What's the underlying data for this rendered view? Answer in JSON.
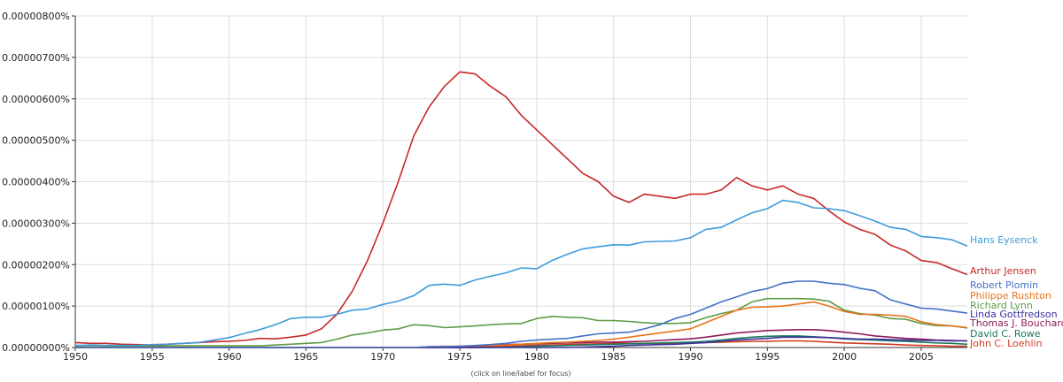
{
  "chart_data": {
    "type": "line",
    "title": "",
    "xlabel": "",
    "ylabel": "",
    "hint": "(click on line/label for focus)",
    "xlim": [
      1950,
      2008
    ],
    "ylim": [
      0,
      8e-06
    ],
    "x_ticks": [
      1950,
      1955,
      1960,
      1965,
      1970,
      1975,
      1980,
      1985,
      1990,
      1995,
      2000,
      2005
    ],
    "y_ticks": [
      {
        "value": 0,
        "label": "0.00000000%"
      },
      {
        "value": 1e-06,
        "label": "0.00000100%"
      },
      {
        "value": 2e-06,
        "label": "0.00000200%"
      },
      {
        "value": 3e-06,
        "label": "0.00000300%"
      },
      {
        "value": 4e-06,
        "label": "0.00000400%"
      },
      {
        "value": 5e-06,
        "label": "0.00000500%"
      },
      {
        "value": 6e-06,
        "label": "0.00000600%"
      },
      {
        "value": 7e-06,
        "label": "0.00000700%"
      },
      {
        "value": 8e-06,
        "label": "0.00000800%"
      }
    ],
    "grid": true,
    "legend": "right, at line ends",
    "x": [
      1950,
      1951,
      1952,
      1953,
      1954,
      1955,
      1956,
      1957,
      1958,
      1959,
      1960,
      1961,
      1962,
      1963,
      1964,
      1965,
      1966,
      1967,
      1968,
      1969,
      1970,
      1971,
      1972,
      1973,
      1974,
      1975,
      1976,
      1977,
      1978,
      1979,
      1980,
      1981,
      1982,
      1983,
      1984,
      1985,
      1986,
      1987,
      1988,
      1989,
      1990,
      1991,
      1992,
      1993,
      1994,
      1995,
      1996,
      1997,
      1998,
      1999,
      2000,
      2001,
      2002,
      2003,
      2004,
      2005,
      2006,
      2007,
      2008
    ],
    "series": [
      {
        "name": "Hans Eysenck",
        "color": "#3d9bdb",
        "values": [
          5e-08,
          6e-08,
          5e-08,
          5e-08,
          5e-08,
          7e-08,
          8e-08,
          1e-07,
          1.2e-07,
          1.8e-07,
          2.4e-07,
          3.4e-07,
          4.3e-07,
          5.5e-07,
          7e-07,
          7.3e-07,
          7.3e-07,
          8e-07,
          9e-07,
          9.3e-07,
          1.04e-06,
          1.12e-06,
          1.25e-06,
          1.5e-06,
          1.53e-06,
          1.5e-06,
          1.63e-06,
          1.72e-06,
          1.8e-06,
          1.92e-06,
          1.9e-06,
          2.1e-06,
          2.25e-06,
          2.38e-06,
          2.43e-06,
          2.48e-06,
          2.47e-06,
          2.55e-06,
          2.56e-06,
          2.57e-06,
          2.65e-06,
          2.85e-06,
          2.9e-06,
          3.08e-06,
          3.25e-06,
          3.35e-06,
          3.55e-06,
          3.5e-06,
          3.37e-06,
          3.35e-06,
          3.3e-06,
          3.18e-06,
          3.05e-06,
          2.9e-06,
          2.85e-06,
          2.68e-06,
          2.65e-06,
          2.6e-06,
          2.45e-06
        ]
      },
      {
        "name": "Arthur Jensen",
        "color": "#c62828",
        "values": [
          1.2e-07,
          1e-07,
          1e-07,
          8e-08,
          7e-08,
          6e-08,
          8e-08,
          1e-07,
          1.2e-07,
          1.4e-07,
          1.5e-07,
          1.7e-07,
          2.2e-07,
          2.1e-07,
          2.5e-07,
          3e-07,
          4.5e-07,
          8e-07,
          1.35e-06,
          2.1e-06,
          3e-06,
          4e-06,
          5.1e-06,
          5.8e-06,
          6.3e-06,
          6.65e-06,
          6.6e-06,
          6.3e-06,
          6.05e-06,
          5.6e-06,
          5.25e-06,
          4.9e-06,
          4.55e-06,
          4.2e-06,
          4e-06,
          3.65e-06,
          3.5e-06,
          3.7e-06,
          3.65e-06,
          3.6e-06,
          3.7e-06,
          3.7e-06,
          3.8e-06,
          4.1e-06,
          3.9e-06,
          3.8e-06,
          3.9e-06,
          3.7e-06,
          3.6e-06,
          3.3e-06,
          3.03e-06,
          2.85e-06,
          2.73e-06,
          2.47e-06,
          2.33e-06,
          2.1e-06,
          2.05e-06,
          1.9e-06,
          1.76e-06
        ]
      },
      {
        "name": "Robert Plomin",
        "color": "#4271c7",
        "values": [
          0,
          0,
          0,
          0,
          0,
          0,
          0,
          0,
          0,
          0,
          0,
          0,
          0,
          0,
          0,
          0,
          0,
          0,
          0,
          0,
          0,
          0,
          0,
          2e-08,
          2e-08,
          3e-08,
          5e-08,
          7e-08,
          1e-07,
          1.5e-07,
          1.8e-07,
          2e-07,
          2.2e-07,
          2.8e-07,
          3.3e-07,
          3.5e-07,
          3.7e-07,
          4.5e-07,
          5.5e-07,
          7e-07,
          8e-07,
          9.5e-07,
          1.1e-06,
          1.22e-06,
          1.35e-06,
          1.42e-06,
          1.55e-06,
          1.6e-06,
          1.6e-06,
          1.55e-06,
          1.52e-06,
          1.43e-06,
          1.37e-06,
          1.15e-06,
          1.05e-06,
          9.5e-07,
          9.3e-07,
          8.8e-07,
          8.3e-07
        ]
      },
      {
        "name": "Philippe Rushton",
        "color": "#e8731a",
        "values": [
          0,
          0,
          0,
          0,
          0,
          0,
          0,
          0,
          0,
          0,
          0,
          0,
          0,
          0,
          0,
          0,
          0,
          0,
          0,
          0,
          0,
          0,
          0,
          2e-08,
          3e-08,
          3e-08,
          4e-08,
          5e-08,
          6e-08,
          8e-08,
          1e-07,
          1.2e-07,
          1.3e-07,
          1.5e-07,
          1.7e-07,
          2e-07,
          2.5e-07,
          3e-07,
          3.5e-07,
          4e-07,
          4.5e-07,
          6e-07,
          7.5e-07,
          9e-07,
          9.7e-07,
          9.8e-07,
          1e-06,
          1.05e-06,
          1.1e-06,
          1e-06,
          8.7e-07,
          8e-07,
          8e-07,
          7.8e-07,
          7.5e-07,
          6.2e-07,
          5.5e-07,
          5.2e-07,
          4.8e-07
        ]
      },
      {
        "name": "Richard Lynn",
        "color": "#5e9b45",
        "values": [
          2e-08,
          2e-08,
          2e-08,
          3e-08,
          3e-08,
          3e-08,
          4e-08,
          4e-08,
          4e-08,
          4e-08,
          4e-08,
          4e-08,
          4e-08,
          6e-08,
          8e-08,
          1e-07,
          1.2e-07,
          2e-07,
          3e-07,
          3.5e-07,
          4.2e-07,
          4.5e-07,
          5.5e-07,
          5.3e-07,
          4.8e-07,
          5e-07,
          5.2e-07,
          5.5e-07,
          5.7e-07,
          5.8e-07,
          7e-07,
          7.5e-07,
          7.3e-07,
          7.2e-07,
          6.5e-07,
          6.5e-07,
          6.3e-07,
          6e-07,
          5.8e-07,
          5.8e-07,
          6e-07,
          7.2e-07,
          8.2e-07,
          9e-07,
          1.1e-06,
          1.18e-06,
          1.18e-06,
          1.18e-06,
          1.17e-06,
          1.12e-06,
          9e-07,
          8.2e-07,
          7.8e-07,
          7e-07,
          6.8e-07,
          5.8e-07,
          5.3e-07,
          5.2e-07,
          4.7e-07
        ]
      },
      {
        "name": "Linda Gottfredson",
        "color": "#3a2f9e",
        "values": [
          0,
          0,
          0,
          0,
          0,
          0,
          0,
          0,
          0,
          0,
          0,
          0,
          0,
          0,
          0,
          0,
          0,
          0,
          0,
          0,
          0,
          0,
          0,
          0,
          0,
          0,
          0,
          0,
          0,
          0,
          0,
          0,
          0,
          1e-08,
          2e-08,
          3e-08,
          5e-08,
          6e-08,
          7e-08,
          8e-08,
          1e-07,
          1.2e-07,
          1.5e-07,
          1.8e-07,
          2e-07,
          2.2e-07,
          2.5e-07,
          2.5e-07,
          2.5e-07,
          2.4e-07,
          2.2e-07,
          2e-07,
          2e-07,
          1.9e-07,
          1.8e-07,
          1.7e-07,
          1.7e-07,
          1.6e-07,
          1.6e-07
        ]
      },
      {
        "name": "Thomas J. Bouchard",
        "color": "#8e1a57",
        "values": [
          0,
          0,
          0,
          0,
          0,
          0,
          0,
          0,
          0,
          0,
          0,
          0,
          0,
          0,
          0,
          0,
          0,
          0,
          0,
          0,
          0,
          0,
          0,
          0,
          0,
          0,
          2e-08,
          5e-08,
          7e-08,
          8e-08,
          9e-08,
          1e-07,
          1.1e-07,
          1.2e-07,
          1.3e-07,
          1.3e-07,
          1.4e-07,
          1.5e-07,
          1.7e-07,
          1.9e-07,
          2.1e-07,
          2.5e-07,
          3e-07,
          3.5e-07,
          3.8e-07,
          4.1e-07,
          4.2e-07,
          4.3e-07,
          4.3e-07,
          4.1e-07,
          3.7e-07,
          3.3e-07,
          2.8e-07,
          2.5e-07,
          2.2e-07,
          2e-07,
          1.8e-07,
          1.7e-07,
          1.6e-07
        ]
      },
      {
        "name": "David C. Rowe",
        "color": "#1b7a5c",
        "values": [
          0,
          0,
          0,
          0,
          0,
          0,
          0,
          0,
          0,
          0,
          0,
          0,
          0,
          0,
          0,
          0,
          0,
          0,
          0,
          0,
          0,
          0,
          0,
          0,
          0,
          0,
          0,
          0,
          1e-08,
          2e-08,
          3e-08,
          4e-08,
          5e-08,
          6e-08,
          7e-08,
          8e-08,
          9e-08,
          1e-07,
          1.1e-07,
          1.2e-07,
          1.3e-07,
          1.5e-07,
          1.8e-07,
          2.2e-07,
          2.5e-07,
          2.7e-07,
          2.8e-07,
          2.8e-07,
          2.6e-07,
          2.4e-07,
          2.1e-07,
          1.9e-07,
          1.8e-07,
          1.6e-07,
          1.5e-07,
          1.3e-07,
          1.1e-07,
          1e-07,
          8e-08
        ]
      },
      {
        "name": "John C. Loehlin",
        "color": "#d23a1e",
        "values": [
          0,
          0,
          0,
          0,
          0,
          0,
          0,
          0,
          0,
          0,
          0,
          0,
          0,
          0,
          0,
          0,
          0,
          0,
          0,
          0,
          0,
          0,
          0,
          0,
          0,
          0,
          0,
          2e-08,
          3e-08,
          4e-08,
          5e-08,
          6e-08,
          7e-08,
          8e-08,
          9e-08,
          1e-07,
          1e-07,
          1e-07,
          1e-07,
          1e-07,
          1.1e-07,
          1.2e-07,
          1.3e-07,
          1.4e-07,
          1.5e-07,
          1.5e-07,
          1.6e-07,
          1.6e-07,
          1.5e-07,
          1.3e-07,
          1.1e-07,
          1e-07,
          9e-08,
          8e-08,
          6e-08,
          5e-08,
          4e-08,
          3e-08,
          3e-08
        ]
      }
    ]
  }
}
